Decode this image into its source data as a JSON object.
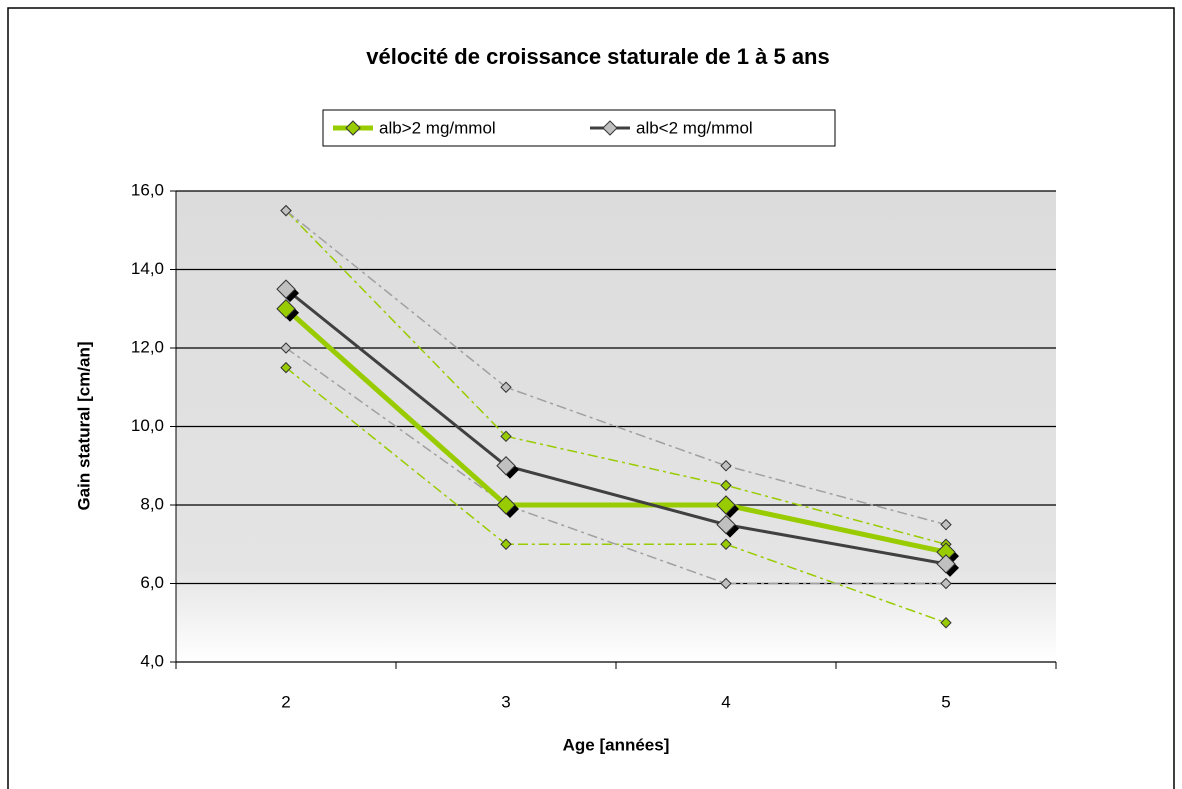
{
  "chart_data": {
    "type": "line",
    "title": "vélocité de croissance staturale de 1 à 5 ans",
    "x_label": "Age [années]",
    "y_label": "Gain statural [cm/an]",
    "categories": [
      "2",
      "3",
      "4",
      "5"
    ],
    "ylim": [
      4,
      16
    ],
    "yticks": [
      {
        "value": 4,
        "label": "4,0"
      },
      {
        "value": 6,
        "label": "6,0"
      },
      {
        "value": 8,
        "label": "8,0"
      },
      {
        "value": 10,
        "label": "10,0"
      },
      {
        "value": 12,
        "label": "12,0"
      },
      {
        "value": 14,
        "label": "14,0"
      },
      {
        "value": 16,
        "label": "16,0"
      }
    ],
    "grid": true,
    "legend": "top",
    "series": [
      {
        "values": [
          15.5,
          9.75,
          8.5,
          7
        ],
        "color": "#99cc00",
        "marker_color": "#99cc00",
        "line_style": "dash-dot"
      },
      {
        "values": [
          11.5,
          7,
          7,
          5
        ],
        "color": "#99cc00",
        "marker_color": "#99cc00",
        "line_style": "dash-dot"
      },
      {
        "values": [
          15.5,
          11,
          9,
          7.5
        ],
        "color": "#a0a0a0",
        "marker_color": "#c0c0c0",
        "line_style": "dash-dot"
      },
      {
        "values": [
          12,
          8,
          6,
          6
        ],
        "color": "#a0a0a0",
        "marker_color": "#c0c0c0",
        "line_style": "dash-dot"
      },
      {
        "name": "alb>2 mg/mmol",
        "values": [
          13,
          8,
          8,
          6.8
        ],
        "color": "#99cc00",
        "marker_color": "#99cc00",
        "line_style": "solid"
      },
      {
        "name": "alb<2 mg/mmol",
        "values": [
          13.5,
          9,
          7.5,
          6.5
        ],
        "color": "#404040",
        "marker_color": "#c0c0c0",
        "line_style": "solid"
      }
    ]
  }
}
